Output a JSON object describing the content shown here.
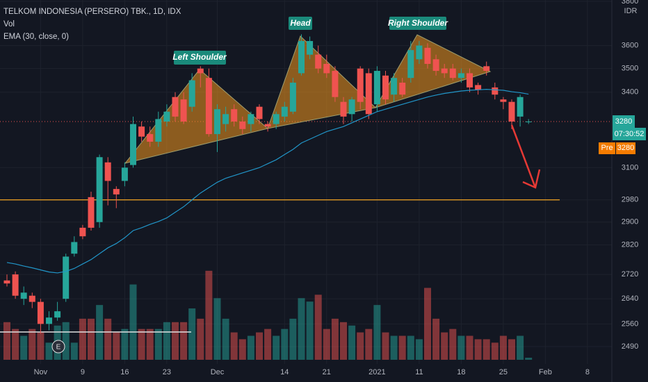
{
  "chart_data": {
    "type": "candlestick",
    "title": "TELKOM INDONESIA (PERSERO) TBK., 1D, IDX",
    "volume_label": "Vol",
    "ema_label": "EMA (30, close, 0)",
    "currency": "IDR",
    "log_scale": true,
    "grid": true,
    "up_color": "#26a69a",
    "down_color": "#ef5350",
    "ema_color": "#2196c9",
    "ylim": [
      2450,
      3800
    ],
    "yticks": [
      3800,
      3600,
      3500,
      3400,
      3100,
      2980,
      2900,
      2820,
      2720,
      2640,
      2560,
      2490
    ],
    "vlim": [
      0,
      140
    ],
    "categories": [
      null,
      null,
      null,
      null,
      "Nov",
      null,
      null,
      null,
      null,
      "9",
      null,
      null,
      null,
      null,
      "16",
      null,
      null,
      null,
      null,
      "23",
      null,
      null,
      null,
      null,
      null,
      "Dec",
      null,
      null,
      null,
      null,
      null,
      null,
      null,
      "14",
      null,
      null,
      null,
      null,
      "21",
      null,
      null,
      null,
      null,
      null,
      "2021",
      null,
      null,
      null,
      null,
      "11",
      null,
      null,
      null,
      null,
      "18",
      null,
      null,
      null,
      null,
      "25",
      null,
      null,
      null,
      null,
      "Feb",
      null,
      null,
      null,
      null,
      "8"
    ],
    "open": [
      2700,
      2720,
      2640,
      2650,
      2630,
      2560,
      2580,
      2640,
      2790,
      2880,
      2990,
      2900,
      3120,
      3020,
      3050,
      3110,
      3260,
      3230,
      3200,
      3280,
      3380,
      3370,
      3340,
      3500,
      3460,
      3230,
      3270,
      3330,
      3280,
      3270,
      3340,
      3270,
      3270,
      3300,
      3320,
      3480,
      3560,
      3560,
      3520,
      3490,
      3360,
      3310,
      3500,
      3480,
      3350,
      3470,
      3390,
      3440,
      3460,
      3540,
      3590,
      3540,
      3500,
      3500,
      3460,
      3480,
      3430,
      3510,
      3420,
      3370,
      3360,
      3300,
      3280,
      null,
      null,
      null,
      null,
      null,
      null,
      null
    ],
    "high": [
      2720,
      2730,
      2680,
      2660,
      2640,
      2600,
      2630,
      2790,
      2850,
      2890,
      3010,
      3150,
      3140,
      3030,
      3120,
      3300,
      3280,
      3260,
      3320,
      3350,
      3400,
      3400,
      3480,
      3510,
      3500,
      3350,
      3340,
      3350,
      3300,
      3320,
      3350,
      3280,
      3320,
      3360,
      3460,
      3650,
      3640,
      3600,
      3560,
      3510,
      3380,
      3380,
      3510,
      3500,
      3510,
      3490,
      3480,
      3460,
      3620,
      3620,
      3610,
      3560,
      3520,
      3520,
      3500,
      3500,
      3440,
      3530,
      3440,
      3380,
      3370,
      3390,
      3290,
      null,
      null,
      null,
      null,
      null,
      null,
      null
    ],
    "low": [
      2680,
      2640,
      2620,
      2610,
      2530,
      2540,
      2570,
      2630,
      2780,
      2840,
      2870,
      2880,
      2960,
      2950,
      3030,
      3100,
      3200,
      3180,
      3180,
      3260,
      3280,
      3270,
      3320,
      3420,
      3220,
      3160,
      3240,
      3260,
      3230,
      3240,
      3270,
      3240,
      3250,
      3280,
      3310,
      3470,
      3540,
      3480,
      3460,
      3360,
      3270,
      3280,
      3330,
      3290,
      3320,
      3350,
      3360,
      3380,
      3440,
      3520,
      3500,
      3470,
      3460,
      3450,
      3440,
      3400,
      3390,
      3470,
      3370,
      3330,
      3250,
      3260,
      3270,
      null,
      null,
      null,
      null,
      null,
      null,
      null
    ],
    "close": [
      2690,
      2650,
      2660,
      2630,
      2560,
      2580,
      2600,
      2780,
      2830,
      2850,
      2880,
      3140,
      3050,
      3000,
      3100,
      3270,
      3220,
      3200,
      3290,
      3320,
      3300,
      3280,
      3450,
      3480,
      3230,
      3330,
      3310,
      3280,
      3250,
      3310,
      3290,
      3260,
      3310,
      3340,
      3440,
      3620,
      3620,
      3500,
      3480,
      3380,
      3300,
      3370,
      3360,
      3310,
      3490,
      3370,
      3460,
      3390,
      3580,
      3600,
      3520,
      3490,
      3480,
      3460,
      3480,
      3420,
      3410,
      3490,
      3390,
      3360,
      3280,
      3380,
      3280,
      null,
      null,
      null,
      null,
      null,
      null,
      null
    ],
    "volume": [
      55,
      45,
      35,
      45,
      40,
      25,
      50,
      55,
      25,
      60,
      60,
      80,
      60,
      40,
      45,
      110,
      45,
      45,
      45,
      55,
      55,
      55,
      75,
      60,
      130,
      90,
      60,
      40,
      30,
      35,
      40,
      45,
      35,
      45,
      60,
      90,
      85,
      95,
      45,
      60,
      55,
      50,
      40,
      45,
      80,
      40,
      35,
      35,
      35,
      30,
      105,
      60,
      40,
      45,
      35,
      35,
      30,
      30,
      25,
      35,
      30,
      35,
      3,
      null,
      null,
      null,
      null,
      null,
      null,
      null
    ],
    "ema": [
      2760,
      2755,
      2748,
      2742,
      2735,
      2728,
      2725,
      2730,
      2740,
      2755,
      2770,
      2790,
      2810,
      2825,
      2845,
      2870,
      2880,
      2892,
      2902,
      2915,
      2935,
      2955,
      2980,
      3005,
      3025,
      3045,
      3060,
      3070,
      3080,
      3090,
      3100,
      3115,
      3130,
      3150,
      3170,
      3195,
      3210,
      3225,
      3240,
      3250,
      3260,
      3275,
      3290,
      3305,
      3320,
      3330,
      3340,
      3350,
      3360,
      3370,
      3380,
      3388,
      3395,
      3400,
      3405,
      3408,
      3410,
      3412,
      3410,
      3408,
      3402,
      3398,
      3392,
      null,
      null,
      null,
      null,
      null,
      null,
      null
    ],
    "level": 2980,
    "level_color": "#f5a623",
    "last_price": 3280,
    "countdown": "07:30:52",
    "premarket": {
      "label": "Pre",
      "price": 3280
    },
    "patterns": [
      "Left Shoulder",
      "Head",
      "Right Shoulder"
    ],
    "event": "E"
  }
}
